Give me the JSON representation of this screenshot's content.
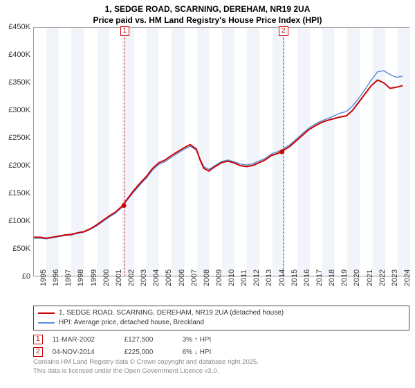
{
  "title_line1": "1, SEDGE ROAD, SCARNING, DEREHAM, NR19 2UA",
  "title_line2": "Price paid vs. HM Land Registry's House Price Index (HPI)",
  "chart": {
    "type": "line",
    "background_color": "#ffffff",
    "band_color_alt": "#f1f5fa",
    "grid_color": "#e0e0e0",
    "ylim": [
      0,
      450
    ],
    "y_ticks": [
      0,
      50,
      100,
      150,
      200,
      250,
      300,
      350,
      400,
      450
    ],
    "y_tick_labels": [
      "£0",
      "£50K",
      "£100K",
      "£150K",
      "£200K",
      "£250K",
      "£300K",
      "£350K",
      "£400K",
      "£450K"
    ],
    "y_label_fontsize": 11,
    "x_years": [
      1995,
      1996,
      1997,
      1998,
      1999,
      2000,
      2001,
      2002,
      2003,
      2004,
      2005,
      2006,
      2007,
      2008,
      2009,
      2010,
      2011,
      2012,
      2013,
      2014,
      2015,
      2016,
      2017,
      2018,
      2019,
      2020,
      2021,
      2022,
      2023,
      2024
    ],
    "x_label_fontsize": 11,
    "series": [
      {
        "name": "price_paid",
        "label": "1, SEDGE ROAD, SCARNING, DEREHAM, NR19 2UA (detached house)",
        "color": "#cc0000",
        "width": 2,
        "points": [
          [
            1995.0,
            70
          ],
          [
            1995.5,
            70
          ],
          [
            1996.0,
            68
          ],
          [
            1996.5,
            70
          ],
          [
            1997.0,
            72
          ],
          [
            1997.5,
            74
          ],
          [
            1998.0,
            75
          ],
          [
            1998.5,
            78
          ],
          [
            1999.0,
            80
          ],
          [
            1999.5,
            85
          ],
          [
            2000.0,
            92
          ],
          [
            2000.5,
            100
          ],
          [
            2001.0,
            108
          ],
          [
            2001.5,
            115
          ],
          [
            2002.0,
            125
          ],
          [
            2002.5,
            140
          ],
          [
            2003.0,
            155
          ],
          [
            2003.5,
            168
          ],
          [
            2004.0,
            180
          ],
          [
            2004.5,
            195
          ],
          [
            2005.0,
            205
          ],
          [
            2005.5,
            210
          ],
          [
            2006.0,
            218
          ],
          [
            2006.5,
            225
          ],
          [
            2007.0,
            232
          ],
          [
            2007.5,
            238
          ],
          [
            2008.0,
            230
          ],
          [
            2008.3,
            210
          ],
          [
            2008.6,
            195
          ],
          [
            2009.0,
            190
          ],
          [
            2009.5,
            198
          ],
          [
            2010.0,
            205
          ],
          [
            2010.5,
            208
          ],
          [
            2011.0,
            205
          ],
          [
            2011.5,
            200
          ],
          [
            2012.0,
            198
          ],
          [
            2012.5,
            200
          ],
          [
            2013.0,
            205
          ],
          [
            2013.5,
            210
          ],
          [
            2014.0,
            218
          ],
          [
            2014.5,
            222
          ],
          [
            2014.85,
            225
          ],
          [
            2015.0,
            228
          ],
          [
            2015.5,
            235
          ],
          [
            2016.0,
            245
          ],
          [
            2016.5,
            255
          ],
          [
            2017.0,
            265
          ],
          [
            2017.5,
            272
          ],
          [
            2018.0,
            278
          ],
          [
            2018.5,
            282
          ],
          [
            2019.0,
            285
          ],
          [
            2019.5,
            288
          ],
          [
            2020.0,
            290
          ],
          [
            2020.5,
            300
          ],
          [
            2021.0,
            315
          ],
          [
            2021.5,
            330
          ],
          [
            2022.0,
            345
          ],
          [
            2022.5,
            355
          ],
          [
            2023.0,
            350
          ],
          [
            2023.5,
            340
          ],
          [
            2024.0,
            342
          ],
          [
            2024.5,
            345
          ]
        ]
      },
      {
        "name": "hpi",
        "label": "HPI: Average price, detached house, Breckland",
        "color": "#5b8fd6",
        "width": 1.5,
        "points": [
          [
            1995.0,
            68
          ],
          [
            1995.5,
            68
          ],
          [
            1996.0,
            67
          ],
          [
            1996.5,
            69
          ],
          [
            1997.0,
            71
          ],
          [
            1997.5,
            73
          ],
          [
            1998.0,
            74
          ],
          [
            1998.5,
            77
          ],
          [
            1999.0,
            79
          ],
          [
            1999.5,
            84
          ],
          [
            2000.0,
            90
          ],
          [
            2000.5,
            98
          ],
          [
            2001.0,
            106
          ],
          [
            2001.5,
            113
          ],
          [
            2002.0,
            123
          ],
          [
            2002.5,
            138
          ],
          [
            2003.0,
            152
          ],
          [
            2003.5,
            165
          ],
          [
            2004.0,
            177
          ],
          [
            2004.5,
            192
          ],
          [
            2005.0,
            202
          ],
          [
            2005.5,
            207
          ],
          [
            2006.0,
            215
          ],
          [
            2006.5,
            222
          ],
          [
            2007.0,
            229
          ],
          [
            2007.5,
            235
          ],
          [
            2008.0,
            228
          ],
          [
            2008.3,
            212
          ],
          [
            2008.6,
            198
          ],
          [
            2009.0,
            193
          ],
          [
            2009.5,
            200
          ],
          [
            2010.0,
            207
          ],
          [
            2010.5,
            210
          ],
          [
            2011.0,
            207
          ],
          [
            2011.5,
            203
          ],
          [
            2012.0,
            201
          ],
          [
            2012.5,
            203
          ],
          [
            2013.0,
            208
          ],
          [
            2013.5,
            213
          ],
          [
            2014.0,
            221
          ],
          [
            2014.5,
            225
          ],
          [
            2014.85,
            228
          ],
          [
            2015.0,
            231
          ],
          [
            2015.5,
            238
          ],
          [
            2016.0,
            248
          ],
          [
            2016.5,
            258
          ],
          [
            2017.0,
            268
          ],
          [
            2017.5,
            275
          ],
          [
            2018.0,
            281
          ],
          [
            2018.5,
            285
          ],
          [
            2019.0,
            290
          ],
          [
            2019.5,
            295
          ],
          [
            2020.0,
            298
          ],
          [
            2020.5,
            308
          ],
          [
            2021.0,
            322
          ],
          [
            2021.5,
            338
          ],
          [
            2022.0,
            355
          ],
          [
            2022.5,
            370
          ],
          [
            2023.0,
            372
          ],
          [
            2023.5,
            365
          ],
          [
            2024.0,
            360
          ],
          [
            2024.5,
            362
          ]
        ]
      }
    ],
    "sale_markers": [
      {
        "n": "1",
        "x": 2002.2,
        "y": 127.5
      },
      {
        "n": "2",
        "x": 2014.85,
        "y": 225.0
      }
    ]
  },
  "legend": {
    "line1_label": "1, SEDGE ROAD, SCARNING, DEREHAM, NR19 2UA (detached house)",
    "line1_color": "#cc0000",
    "line2_label": "HPI: Average price, detached house, Breckland",
    "line2_color": "#5b8fd6"
  },
  "sales": [
    {
      "n": "1",
      "date": "11-MAR-2002",
      "price": "£127,500",
      "diff": "3% ↑ HPI"
    },
    {
      "n": "2",
      "date": "04-NOV-2014",
      "price": "£225,000",
      "diff": "6% ↓ HPI"
    }
  ],
  "footer_line1": "Contains HM Land Registry data © Crown copyright and database right 2025.",
  "footer_line2": "This data is licensed under the Open Government Licence v3.0."
}
